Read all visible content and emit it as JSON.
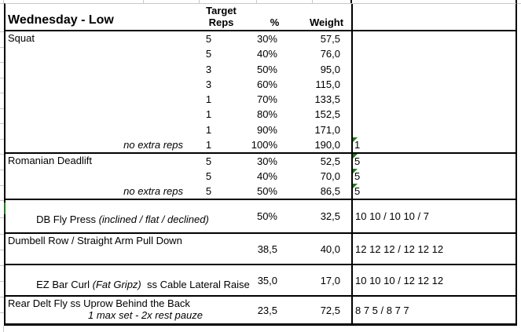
{
  "colors": {
    "indicator_green": "#1e7b1e",
    "grid_gray": "#c9c9c9",
    "border_black": "#000000"
  },
  "header": {
    "title": "Wednesday - Low",
    "target_line1": "Target",
    "target_line2": "Reps",
    "pct": "%",
    "weight": "Weight"
  },
  "squat": {
    "name": "Squat",
    "note": "no extra reps",
    "result": "1",
    "sets": [
      {
        "reps": "5",
        "pct": "30%",
        "weight": "57,5"
      },
      {
        "reps": "5",
        "pct": "40%",
        "weight": "76,0"
      },
      {
        "reps": "3",
        "pct": "50%",
        "weight": "95,0"
      },
      {
        "reps": "3",
        "pct": "60%",
        "weight": "115,0"
      },
      {
        "reps": "1",
        "pct": "70%",
        "weight": "133,5"
      },
      {
        "reps": "1",
        "pct": "80%",
        "weight": "152,5"
      },
      {
        "reps": "1",
        "pct": "90%",
        "weight": "171,0"
      },
      {
        "reps": "1",
        "pct": "100%",
        "weight": "190,0"
      }
    ]
  },
  "romanian_deadlift": {
    "name": "Romanian Deadlift",
    "note": "no extra reps",
    "sets": [
      {
        "reps": "5",
        "pct": "30%",
        "weight": "52,5",
        "result": "5"
      },
      {
        "reps": "5",
        "pct": "40%",
        "weight": "70,0",
        "result": "5"
      },
      {
        "reps": "5",
        "pct": "50%",
        "weight": "86,5",
        "result": "5"
      }
    ]
  },
  "db_fly_press": {
    "name": "DB Fly Press ",
    "name_italic": "(inclined / flat / declined)",
    "pct": "50%",
    "weight": "32,5",
    "result": "10 10 / 10 10 / 7"
  },
  "dumbell_row": {
    "name": "Dumbell Row / Straight Arm Pull Down",
    "val1": "38,5",
    "val2": "40,0",
    "result": "12 12 12 / 12 12 12"
  },
  "ez_bar_curl": {
    "name": "EZ Bar Curl ",
    "name_italic": "(Fat Gripz)",
    "name_post": "  ss Cable Lateral Raise",
    "val1": "35,0",
    "val2": "17,0",
    "result": "10 10 10 / 12 12 12"
  },
  "rear_delt_fly": {
    "name": "Rear Delt Fly ss Uprow Behind the Back",
    "subtitle": "1 max set - 2x rest pauze",
    "val1": "23,5",
    "val2": "72,5",
    "result": "8 7 5 / 8 7 7"
  }
}
